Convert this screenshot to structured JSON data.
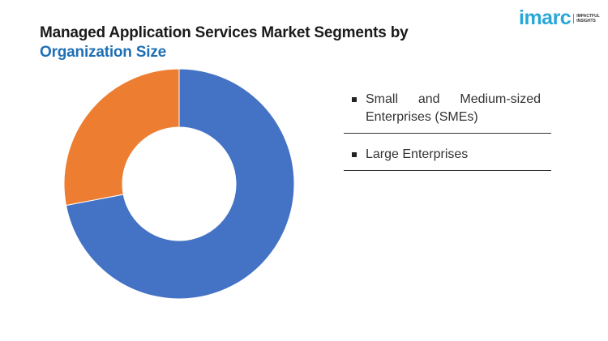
{
  "brand": {
    "name": "imarc",
    "tagline": "IMPACTFUL INSIGHTS"
  },
  "chart_data": {
    "type": "donut",
    "title": "Managed Application Services Market Segments by",
    "subtitle": "Organization Size",
    "categories": [
      "Small and Medium-sized Enterprises (SMEs)",
      "Large Enterprises"
    ],
    "values": [
      28,
      72
    ],
    "colors": [
      "#ed7d31",
      "#4472c4"
    ]
  }
}
